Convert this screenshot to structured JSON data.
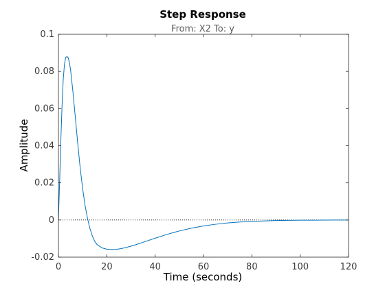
{
  "chart_data": {
    "type": "line",
    "title": "Step Response",
    "subtitle": "From: X2  To: y",
    "xlabel": "Time (seconds)",
    "ylabel": "Amplitude",
    "xlim": [
      0,
      120
    ],
    "ylim": [
      -0.02,
      0.1
    ],
    "xticks": [
      0,
      20,
      40,
      60,
      80,
      100,
      120
    ],
    "yticks": [
      -0.02,
      0,
      0.02,
      0.04,
      0.06,
      0.08,
      0.1
    ],
    "xtick_labels": [
      "0",
      "20",
      "40",
      "60",
      "80",
      "100",
      "120"
    ],
    "ytick_labels": [
      "-0.02",
      "0",
      "0.02",
      "0.04",
      "0.06",
      "0.08",
      "0.1"
    ],
    "grid": false,
    "reference_line": {
      "y": 0,
      "style": "dotted",
      "color": "#000000"
    },
    "series": [
      {
        "color": "#0072BD",
        "x": [
          0,
          0.5,
          1,
          1.5,
          2,
          2.5,
          3,
          3.5,
          4,
          4.5,
          5,
          5.5,
          6,
          7,
          8,
          9,
          10,
          11,
          12,
          13,
          14,
          15,
          16,
          18,
          20,
          22,
          24,
          26,
          28,
          30,
          32,
          35,
          40,
          45,
          50,
          55,
          60,
          65,
          70,
          75,
          80,
          85,
          90,
          95,
          100,
          105,
          110,
          115,
          120
        ],
        "y": [
          0,
          0.021,
          0.043,
          0.062,
          0.076,
          0.084,
          0.0875,
          0.088,
          0.0875,
          0.085,
          0.081,
          0.075,
          0.069,
          0.055,
          0.041,
          0.028,
          0.017,
          0.008,
          0.001,
          -0.0045,
          -0.0085,
          -0.0115,
          -0.0133,
          -0.015,
          -0.0157,
          -0.0159,
          -0.0158,
          -0.0154,
          -0.0148,
          -0.0141,
          -0.0133,
          -0.012,
          -0.0098,
          -0.0077,
          -0.0059,
          -0.0044,
          -0.0032,
          -0.0023,
          -0.0016,
          -0.0011,
          -0.0008,
          -0.0005,
          -0.0003,
          -0.0002,
          -0.0001,
          -0.0001,
          -5e-05,
          -2e-05,
          0
        ]
      }
    ]
  }
}
